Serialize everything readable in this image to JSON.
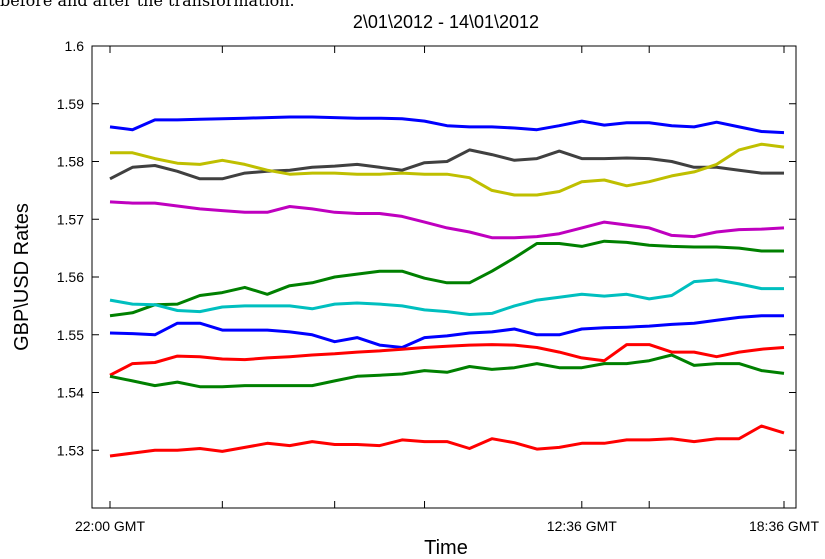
{
  "caption_fragment": "before and after the transformation.",
  "chart_data": {
    "type": "line",
    "title": "2\\01\\2012 - 14\\01\\2012",
    "xlabel": "Time",
    "ylabel": "GBP\\USD Rates",
    "ylim": [
      1.52,
      1.6
    ],
    "xlim": [
      0,
      30
    ],
    "y_ticks": [
      "1.53",
      "1.54",
      "1.55",
      "1.56",
      "1.57",
      "1.58",
      "1.59",
      "1.6"
    ],
    "y_tick_values": [
      1.53,
      1.54,
      1.55,
      1.56,
      1.57,
      1.58,
      1.59,
      1.6
    ],
    "x_tick_positions": [
      0,
      5,
      10,
      14,
      21,
      24,
      30
    ],
    "x_tick_labels": [
      {
        "x": 0,
        "label": "22:00 GMT"
      },
      {
        "x": 21,
        "label": "12:36 GMT"
      },
      {
        "x": 30,
        "label": "18:36 GMT"
      }
    ],
    "grid": false,
    "x": [
      0,
      1,
      2,
      3,
      4,
      5,
      6,
      7,
      8,
      9,
      10,
      11,
      12,
      13,
      14,
      15,
      16,
      17,
      18,
      19,
      20,
      21,
      22,
      23,
      24,
      25,
      26,
      27,
      28,
      29,
      30
    ],
    "series": [
      {
        "color": "#0000ff",
        "values": [
          1.586,
          1.5855,
          1.5872,
          1.5872,
          1.5873,
          1.5874,
          1.5875,
          1.5876,
          1.5877,
          1.5877,
          1.5876,
          1.5875,
          1.5875,
          1.5874,
          1.587,
          1.5862,
          1.586,
          1.586,
          1.5858,
          1.5855,
          1.5862,
          1.587,
          1.5863,
          1.5867,
          1.5867,
          1.5862,
          1.586,
          1.5868,
          1.586,
          1.5852,
          1.585
        ]
      },
      {
        "color": "#404040",
        "values": [
          1.577,
          1.579,
          1.5793,
          1.5783,
          1.577,
          1.577,
          1.578,
          1.5783,
          1.5785,
          1.579,
          1.5792,
          1.5795,
          1.579,
          1.5785,
          1.5798,
          1.58,
          1.582,
          1.5812,
          1.5802,
          1.5805,
          1.5818,
          1.5805,
          1.5805,
          1.5806,
          1.5805,
          1.58,
          1.579,
          1.579,
          1.5785,
          1.578,
          1.578
        ]
      },
      {
        "color": "#bfbf00",
        "values": [
          1.5815,
          1.5815,
          1.5805,
          1.5797,
          1.5795,
          1.5802,
          1.5795,
          1.5785,
          1.5778,
          1.578,
          1.578,
          1.5778,
          1.5778,
          1.578,
          1.5778,
          1.5778,
          1.5772,
          1.575,
          1.5742,
          1.5742,
          1.5748,
          1.5765,
          1.5768,
          1.5758,
          1.5765,
          1.5775,
          1.5782,
          1.5795,
          1.582,
          1.583,
          1.5825
        ]
      },
      {
        "color": "#bf00bf",
        "values": [
          1.573,
          1.5728,
          1.5728,
          1.5723,
          1.5718,
          1.5715,
          1.5712,
          1.5712,
          1.5722,
          1.5718,
          1.5712,
          1.571,
          1.571,
          1.5705,
          1.5695,
          1.5685,
          1.5678,
          1.5668,
          1.5668,
          1.567,
          1.5675,
          1.5685,
          1.5695,
          1.569,
          1.5685,
          1.5672,
          1.567,
          1.5678,
          1.5682,
          1.5683,
          1.5685
        ]
      },
      {
        "color": "#008000",
        "values": [
          1.5533,
          1.5538,
          1.5552,
          1.5553,
          1.5568,
          1.5573,
          1.5582,
          1.557,
          1.5585,
          1.559,
          1.56,
          1.5605,
          1.561,
          1.561,
          1.5598,
          1.559,
          1.559,
          1.561,
          1.5633,
          1.5658,
          1.5658,
          1.5653,
          1.5662,
          1.566,
          1.5655,
          1.5653,
          1.5652,
          1.5652,
          1.565,
          1.5645,
          1.5645
        ]
      },
      {
        "color": "#00bfbf",
        "values": [
          1.556,
          1.5553,
          1.5552,
          1.5542,
          1.554,
          1.5548,
          1.555,
          1.555,
          1.555,
          1.5545,
          1.5553,
          1.5555,
          1.5553,
          1.555,
          1.5543,
          1.554,
          1.5535,
          1.5537,
          1.555,
          1.556,
          1.5565,
          1.557,
          1.5567,
          1.557,
          1.5562,
          1.5568,
          1.5592,
          1.5595,
          1.5588,
          1.558,
          1.558
        ]
      },
      {
        "color": "#0000ff",
        "values": [
          1.5503,
          1.5502,
          1.55,
          1.552,
          1.552,
          1.5508,
          1.5508,
          1.5508,
          1.5505,
          1.55,
          1.5488,
          1.5495,
          1.5482,
          1.5478,
          1.5495,
          1.5498,
          1.5503,
          1.5505,
          1.551,
          1.55,
          1.55,
          1.551,
          1.5512,
          1.5513,
          1.5515,
          1.5518,
          1.552,
          1.5525,
          1.553,
          1.5533,
          1.5533
        ]
      },
      {
        "color": "#ff0000",
        "values": [
          1.543,
          1.545,
          1.5452,
          1.5463,
          1.5462,
          1.5458,
          1.5457,
          1.546,
          1.5462,
          1.5465,
          1.5467,
          1.547,
          1.5472,
          1.5475,
          1.5478,
          1.548,
          1.5482,
          1.5483,
          1.5482,
          1.5478,
          1.547,
          1.546,
          1.5455,
          1.5483,
          1.5483,
          1.547,
          1.547,
          1.5462,
          1.547,
          1.5475,
          1.5478
        ]
      },
      {
        "color": "#008000",
        "values": [
          1.5428,
          1.542,
          1.5412,
          1.5418,
          1.541,
          1.541,
          1.5412,
          1.5412,
          1.5412,
          1.5412,
          1.542,
          1.5428,
          1.543,
          1.5432,
          1.5438,
          1.5435,
          1.5445,
          1.544,
          1.5443,
          1.545,
          1.5443,
          1.5443,
          1.545,
          1.545,
          1.5455,
          1.5465,
          1.5447,
          1.545,
          1.545,
          1.5438,
          1.5433
        ]
      },
      {
        "color": "#ff0000",
        "values": [
          1.529,
          1.5295,
          1.53,
          1.53,
          1.5303,
          1.5298,
          1.5305,
          1.5312,
          1.5308,
          1.5315,
          1.531,
          1.531,
          1.5308,
          1.5318,
          1.5315,
          1.5315,
          1.5303,
          1.532,
          1.5313,
          1.5302,
          1.5305,
          1.5312,
          1.5312,
          1.5318,
          1.5318,
          1.532,
          1.5315,
          1.532,
          1.532,
          1.5342,
          1.533
        ]
      }
    ]
  }
}
